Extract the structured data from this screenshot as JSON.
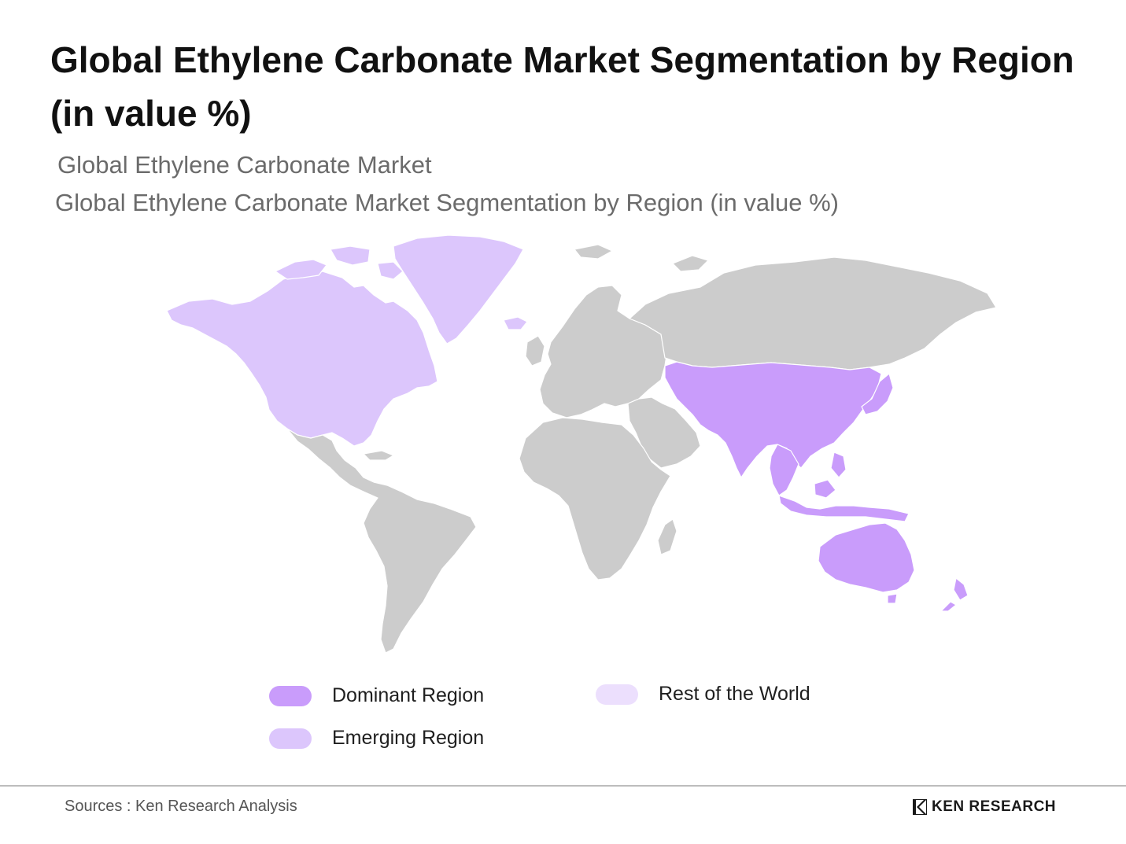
{
  "header": {
    "title": "Global Ethylene Carbonate Market Segmentation by Region (in value %)",
    "subtitle_1": "Global Ethylene Carbonate Market",
    "subtitle_2": "Global Ethylene Carbonate Market Segmentation by Region (in value %)"
  },
  "colors": {
    "dominant": "#c99cfb",
    "emerging": "#dcc6fc",
    "rest": "#ecdffd",
    "land": "#cccccc",
    "border": "#ffffff"
  },
  "legend": {
    "dominant_label": "Dominant Region",
    "emerging_label": "Emerging Region",
    "rest_label": "Rest of the World"
  },
  "map": {
    "dominant_regions": [
      "Asia-Pacific"
    ],
    "emerging_regions": [
      "North America",
      "Greenland"
    ],
    "gray_regions": [
      "Latin America",
      "Europe",
      "Russia",
      "Middle East",
      "Africa"
    ]
  },
  "footer": {
    "source": "Sources : Ken Research Analysis",
    "brand": "KEN RESEARCH"
  }
}
